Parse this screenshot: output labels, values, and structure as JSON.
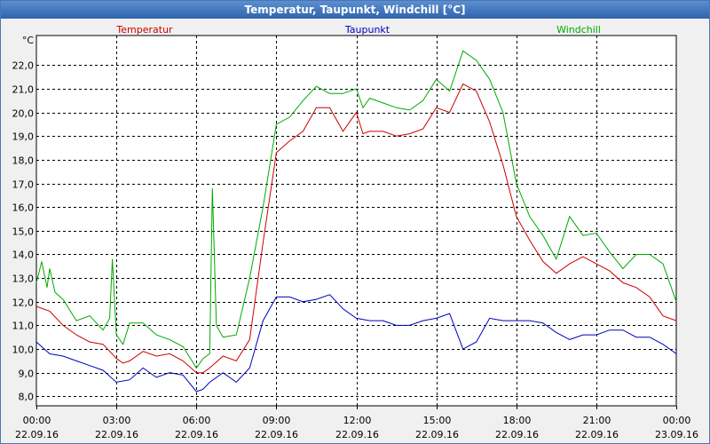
{
  "window": {
    "title": "Temperatur, Taupunkt, Windchill [°C]"
  },
  "chart_data": {
    "type": "line",
    "title": "Temperatur, Taupunkt, Windchill [°C]",
    "ylabel": "°C",
    "ylim": [
      7.6,
      23.25
    ],
    "yticks": [
      8.0,
      9.0,
      10.0,
      11.0,
      12.0,
      13.0,
      14.0,
      15.0,
      16.0,
      17.0,
      18.0,
      19.0,
      20.0,
      21.0,
      22.0
    ],
    "ytick_labels": [
      "8,0",
      "9,0",
      "10,0",
      "11,0",
      "12,0",
      "13,0",
      "14,0",
      "15,0",
      "16,0",
      "17,0",
      "18,0",
      "19,0",
      "20,0",
      "21,0",
      "22,0"
    ],
    "xlim": [
      0,
      24
    ],
    "xticks": [
      0,
      3,
      6,
      9,
      12,
      15,
      18,
      21,
      24
    ],
    "xtick_labels": [
      {
        "time": "00:00",
        "date": "22.09.16"
      },
      {
        "time": "03:00",
        "date": "22.09.16"
      },
      {
        "time": "06:00",
        "date": "22.09.16"
      },
      {
        "time": "09:00",
        "date": "22.09.16"
      },
      {
        "time": "12:00",
        "date": "22.09.16"
      },
      {
        "time": "15:00",
        "date": "22.09.16"
      },
      {
        "time": "18:00",
        "date": "22.09.16"
      },
      {
        "time": "21:00",
        "date": "22.09.16"
      },
      {
        "time": "00:00",
        "date": "23.09.16"
      }
    ],
    "grid": true,
    "series": [
      {
        "name": "Temperatur",
        "color": "#cc0000",
        "x": [
          0,
          0.5,
          1,
          1.5,
          2,
          2.5,
          3,
          3.25,
          3.5,
          4,
          4.5,
          5,
          5.5,
          6,
          6.25,
          6.5,
          7,
          7.5,
          8,
          8.5,
          9,
          9.5,
          10,
          10.5,
          11,
          11.5,
          12,
          12.25,
          12.5,
          13,
          13.5,
          14,
          14.5,
          15,
          15.5,
          16,
          16.5,
          17,
          17.5,
          18,
          18.5,
          19,
          19.5,
          20,
          20.5,
          21,
          21.5,
          22,
          22.5,
          23,
          23.5,
          24
        ],
        "values": [
          11.8,
          11.6,
          11.0,
          10.6,
          10.3,
          10.2,
          9.6,
          9.4,
          9.5,
          9.9,
          9.7,
          9.8,
          9.5,
          9.0,
          9.0,
          9.2,
          9.7,
          9.5,
          10.4,
          14.5,
          18.3,
          18.8,
          19.2,
          20.2,
          20.2,
          19.2,
          20.0,
          19.1,
          19.2,
          19.2,
          19.0,
          19.1,
          19.3,
          20.2,
          20.0,
          21.2,
          20.9,
          19.6,
          17.8,
          15.6,
          14.6,
          13.7,
          13.2,
          13.6,
          13.9,
          13.6,
          13.3,
          12.8,
          12.6,
          12.2,
          11.4,
          11.2
        ]
      },
      {
        "name": "Taupunkt",
        "color": "#0000bb",
        "x": [
          0,
          0.5,
          1,
          1.5,
          2,
          2.5,
          3,
          3.5,
          4,
          4.5,
          5,
          5.5,
          6,
          6.25,
          6.5,
          7,
          7.5,
          8,
          8.5,
          9,
          9.5,
          10,
          10.5,
          11,
          11.5,
          12,
          12.5,
          13,
          13.5,
          14,
          14.5,
          15,
          15.5,
          16,
          16.5,
          17,
          17.5,
          18,
          18.5,
          19,
          19.5,
          20,
          20.5,
          21,
          21.5,
          22,
          22.5,
          23,
          23.5,
          24
        ],
        "values": [
          10.3,
          9.8,
          9.7,
          9.5,
          9.3,
          9.1,
          8.6,
          8.7,
          9.2,
          8.8,
          9.0,
          8.9,
          8.2,
          8.3,
          8.6,
          9.0,
          8.6,
          9.2,
          11.2,
          12.2,
          12.2,
          12.0,
          12.1,
          12.3,
          11.7,
          11.3,
          11.2,
          11.2,
          11.0,
          11.0,
          11.2,
          11.3,
          11.5,
          10.0,
          10.3,
          11.3,
          11.2,
          11.2,
          11.2,
          11.1,
          10.7,
          10.4,
          10.6,
          10.6,
          10.8,
          10.8,
          10.5,
          10.5,
          10.2,
          9.8
        ]
      },
      {
        "name": "Windchill",
        "color": "#00aa00",
        "x": [
          0,
          0.2,
          0.4,
          0.5,
          0.7,
          1,
          1.5,
          2,
          2.5,
          2.75,
          2.85,
          3,
          3.25,
          3.5,
          4,
          4.5,
          5,
          5.5,
          6,
          6.25,
          6.5,
          6.6,
          6.75,
          7,
          7.5,
          8,
          8.5,
          9,
          9.5,
          10,
          10.5,
          11,
          11.5,
          12,
          12.25,
          12.5,
          13,
          13.5,
          14,
          14.5,
          15,
          15.5,
          16,
          16.5,
          17,
          17.5,
          18,
          18.5,
          19,
          19.5,
          20,
          20.5,
          21,
          21.5,
          22,
          22.5,
          23,
          23.5,
          24
        ],
        "values": [
          12.8,
          13.7,
          12.6,
          13.4,
          12.4,
          12.1,
          11.2,
          11.4,
          10.8,
          11.3,
          13.8,
          10.6,
          10.2,
          11.1,
          11.1,
          10.6,
          10.4,
          10.1,
          9.2,
          9.6,
          9.8,
          16.8,
          11.0,
          10.5,
          10.6,
          13.0,
          16.0,
          19.5,
          19.8,
          20.5,
          21.1,
          20.8,
          20.8,
          21.0,
          20.2,
          20.6,
          20.4,
          20.2,
          20.1,
          20.5,
          21.4,
          20.9,
          22.6,
          22.2,
          21.4,
          20.0,
          17.0,
          15.6,
          14.8,
          13.8,
          15.6,
          14.8,
          14.9,
          14.1,
          13.4,
          14.0,
          14.0,
          13.6,
          12.0
        ]
      }
    ],
    "legend": [
      {
        "name": "Temperatur",
        "color": "#cc0000",
        "position": "left"
      },
      {
        "name": "Taupunkt",
        "color": "#0000bb",
        "position": "center"
      },
      {
        "name": "Windchill",
        "color": "#00aa00",
        "position": "right"
      }
    ]
  }
}
